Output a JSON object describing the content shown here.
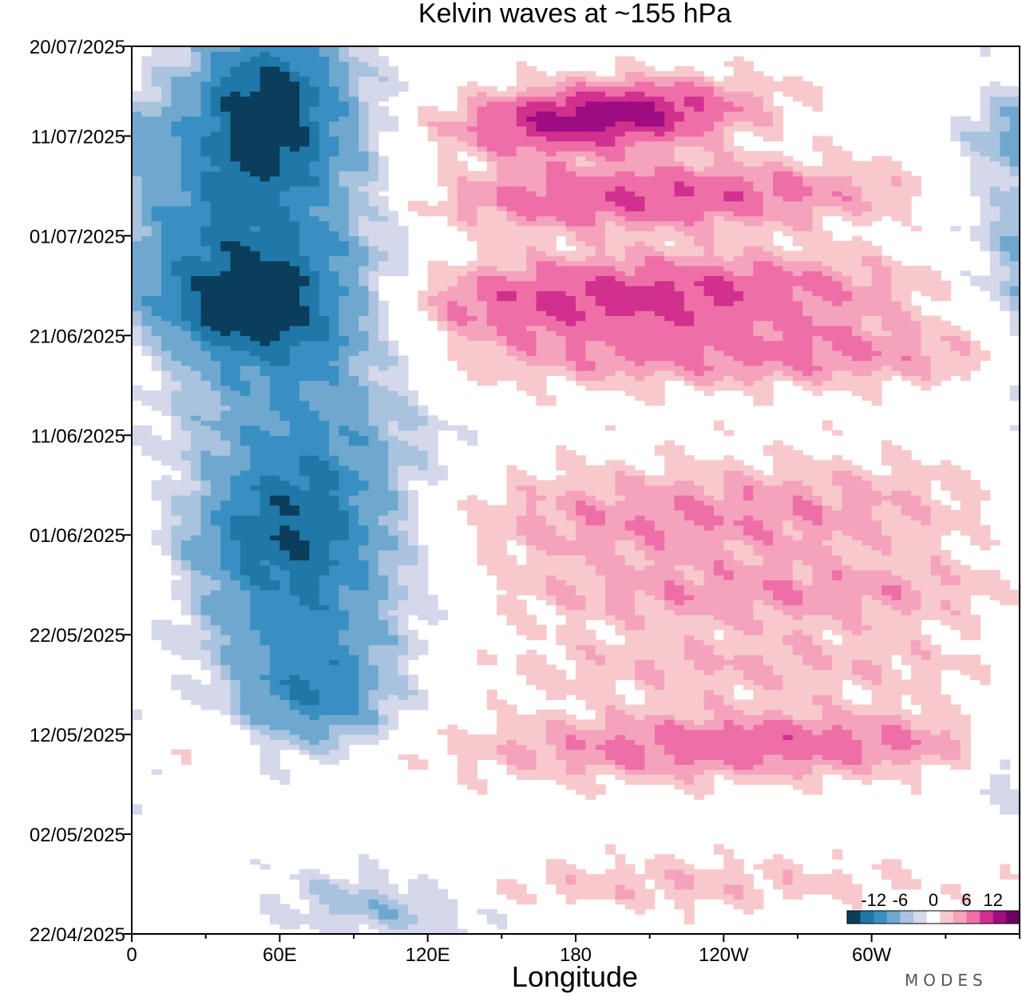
{
  "chart_data": {
    "type": "heatmap",
    "title": "Kelvin waves at ~155 hPa",
    "xlabel": "Longitude",
    "ylabel": "",
    "x_range_deg": [
      0,
      360
    ],
    "x_ticks": [
      {
        "deg": 0,
        "label": "0"
      },
      {
        "deg": 60,
        "label": "60E"
      },
      {
        "deg": 120,
        "label": "120E"
      },
      {
        "deg": 180,
        "label": "180"
      },
      {
        "deg": 240,
        "label": "120W"
      },
      {
        "deg": 300,
        "label": "60W"
      }
    ],
    "x_minor_step_deg": 30,
    "y_range_days": [
      0,
      89
    ],
    "y_ticks": [
      {
        "day": 0,
        "label": "22/04/2025"
      },
      {
        "day": 10,
        "label": "02/05/2025"
      },
      {
        "day": 20,
        "label": "12/05/2025"
      },
      {
        "day": 30,
        "label": "22/05/2025"
      },
      {
        "day": 40,
        "label": "01/06/2025"
      },
      {
        "day": 50,
        "label": "11/06/2025"
      },
      {
        "day": 60,
        "label": "21/06/2025"
      },
      {
        "day": 70,
        "label": "01/07/2025"
      },
      {
        "day": 80,
        "label": "11/07/2025"
      },
      {
        "day": 89,
        "label": "20/07/2025"
      }
    ],
    "colorbar": {
      "levels": [
        -15,
        -12,
        -9,
        -6,
        -4,
        -2,
        2,
        4,
        6,
        9,
        12,
        15
      ],
      "colors": [
        "#0b3d5c",
        "#1f78a8",
        "#3a8fc2",
        "#6fa8cf",
        "#a9c3df",
        "#d4d8ea",
        "#ffffff",
        "#f8c9cc",
        "#f5a3bd",
        "#ee6fa8",
        "#d1308f",
        "#9e0c82",
        "#6a0060"
      ],
      "labels": [
        "-12",
        "-6",
        "0",
        "6",
        "12"
      ],
      "label_levels": [
        -12,
        -6,
        0,
        6,
        12
      ]
    },
    "features": [
      {
        "sign": -1,
        "amp": 13,
        "lon": 55,
        "day": 84,
        "lon_w": 22,
        "day_w": 6,
        "speed": 0
      },
      {
        "sign": -1,
        "amp": 12,
        "lon": 52,
        "day": 62,
        "lon_w": 32,
        "day_w": 4,
        "speed": 0
      },
      {
        "sign": -1,
        "amp": 9,
        "lon": 60,
        "day": 72,
        "lon_w": 35,
        "day_w": 9,
        "speed": 0
      },
      {
        "sign": -1,
        "amp": 10,
        "lon": 65,
        "day": 40,
        "lon_w": 30,
        "day_w": 6,
        "speed": 0
      },
      {
        "sign": -1,
        "amp": 9,
        "lon": 75,
        "day": 24,
        "lon_w": 22,
        "day_w": 4,
        "speed": 0
      },
      {
        "sign": -1,
        "amp": 7,
        "lon": 70,
        "day": 50,
        "lon_w": 35,
        "day_w": 8,
        "speed": 0
      },
      {
        "sign": -1,
        "amp": 6,
        "lon": 65,
        "day": 32,
        "lon_w": 40,
        "day_w": 7,
        "speed": 0
      },
      {
        "sign": -1,
        "amp": 5,
        "lon": 20,
        "day": 70,
        "lon_w": 30,
        "day_w": 8,
        "speed": 0
      },
      {
        "sign": -1,
        "amp": 6,
        "lon": 100,
        "day": 3,
        "lon_w": 30,
        "day_w": 2.5,
        "speed": -3.5
      },
      {
        "sign": -1,
        "amp": 4,
        "lon": 355,
        "day": 80,
        "lon_w": 12,
        "day_w": 3,
        "speed": 0
      },
      {
        "sign": -1,
        "amp": 4,
        "lon": 355,
        "day": 18,
        "lon_w": 12,
        "day_w": 4,
        "speed": 0
      },
      {
        "sign": 1,
        "amp": 14,
        "lon": 190,
        "day": 82,
        "lon_w": 40,
        "day_w": 2.5,
        "speed": 5
      },
      {
        "sign": 1,
        "amp": 9,
        "lon": 210,
        "day": 74,
        "lon_w": 70,
        "day_w": 2.5,
        "speed": 5
      },
      {
        "sign": 1,
        "amp": 10,
        "lon": 200,
        "day": 64,
        "lon_w": 80,
        "day_w": 3,
        "speed": 5
      },
      {
        "sign": 1,
        "amp": 6,
        "lon": 260,
        "day": 58,
        "lon_w": 100,
        "day_w": 2.5,
        "speed": 5
      },
      {
        "sign": 1,
        "amp": 6,
        "lon": 230,
        "day": 42,
        "lon_w": 90,
        "day_w": 4,
        "speed": 5
      },
      {
        "sign": 1,
        "amp": 5,
        "lon": 270,
        "day": 34,
        "lon_w": 90,
        "day_w": 2.5,
        "speed": 5
      },
      {
        "sign": 1,
        "amp": 8,
        "lon": 250,
        "day": 19,
        "lon_w": 80,
        "day_w": 2.5,
        "speed": 5
      },
      {
        "sign": 1,
        "amp": 4,
        "lon": 250,
        "day": 27,
        "lon_w": 90,
        "day_w": 2.5,
        "speed": 5
      },
      {
        "sign": 1,
        "amp": 3.5,
        "lon": 220,
        "day": 5,
        "lon_w": 80,
        "day_w": 2,
        "speed": 5
      }
    ]
  },
  "brand": "MODES"
}
